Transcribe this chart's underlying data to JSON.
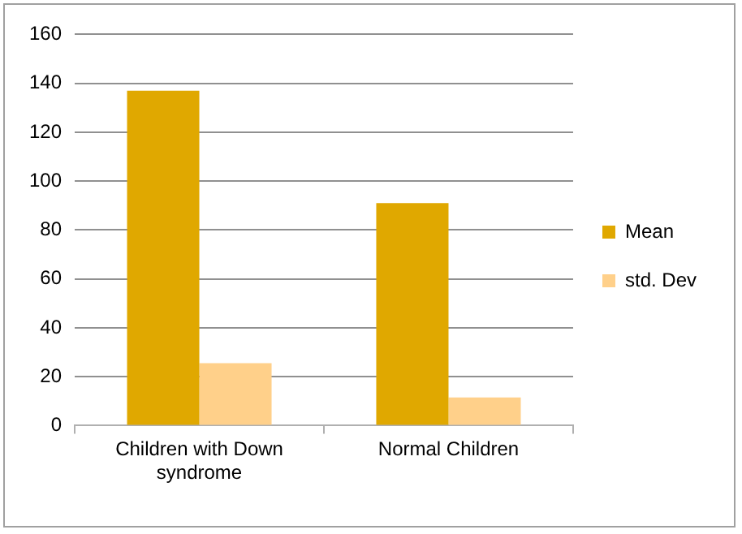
{
  "chart_data": {
    "type": "bar",
    "categories": [
      "Children with Down syndrome",
      "Normal Children"
    ],
    "series": [
      {
        "name": "Mean",
        "color": "#e0a800",
        "values": [
          137,
          91
        ]
      },
      {
        "name": "std. Dev",
        "color": "#ffd08a",
        "values": [
          25.5,
          11.5
        ]
      }
    ],
    "ylim": [
      0,
      160
    ],
    "yticks": [
      0,
      20,
      40,
      60,
      80,
      100,
      120,
      140,
      160
    ],
    "grid": "y",
    "legend": "right"
  }
}
